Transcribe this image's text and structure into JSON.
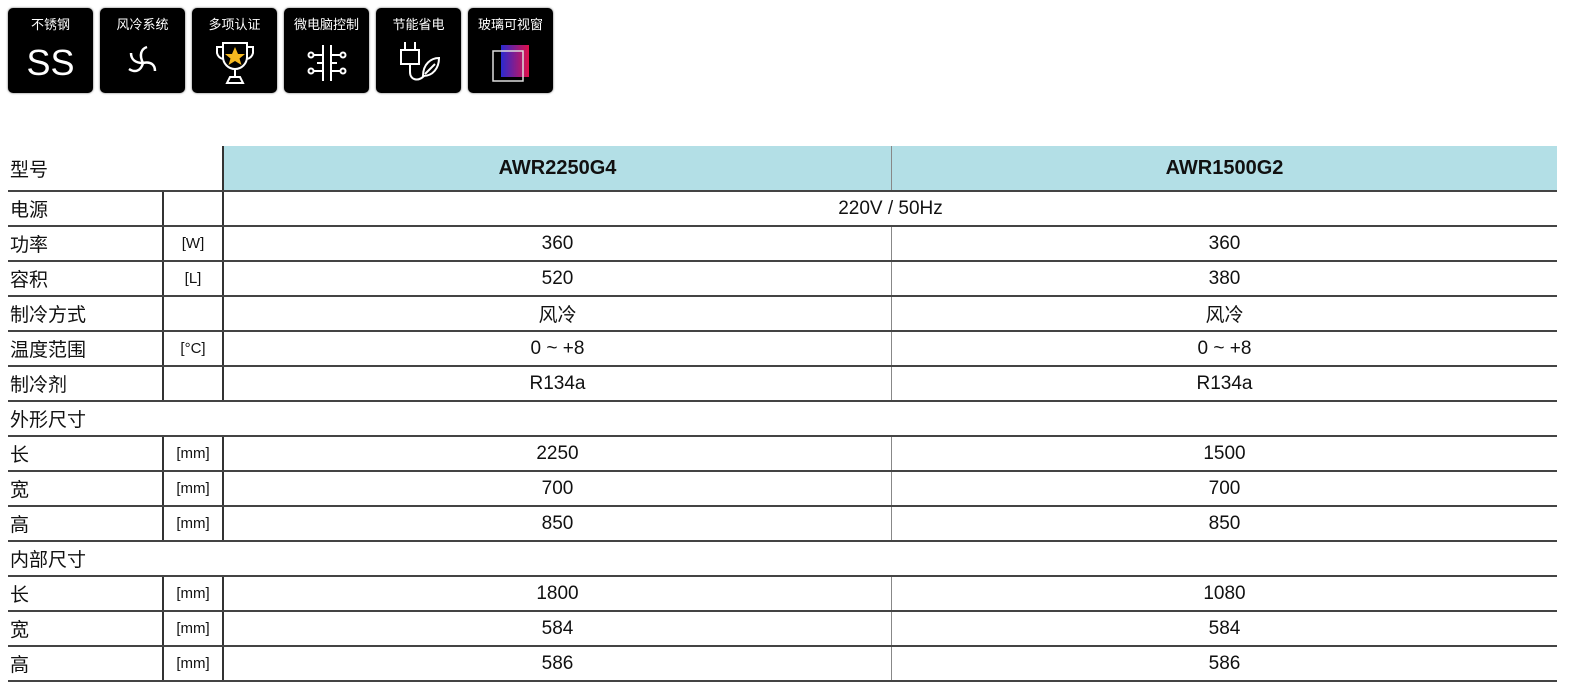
{
  "features": [
    {
      "label": "不锈钢",
      "icon": "ss-text-icon",
      "glyph": "SS"
    },
    {
      "label": "风冷系统",
      "icon": "fan-icon"
    },
    {
      "label": "多项认证",
      "icon": "trophy-star-icon"
    },
    {
      "label": "微电脑控制",
      "icon": "circuit-icon"
    },
    {
      "label": "节能省电",
      "icon": "plug-leaf-icon"
    },
    {
      "label": "玻璃可视窗",
      "icon": "glass-window-icon"
    }
  ],
  "colors": {
    "header_bg": "#b3dfe6",
    "icon_bg": "#000000"
  },
  "table": {
    "header": {
      "label": "型号",
      "models": [
        "AWR2250G4",
        "AWR1500G2"
      ]
    },
    "rows": [
      {
        "label": "电源",
        "unit": "",
        "span": "220V / 50Hz"
      },
      {
        "label": "功率",
        "unit": "[W]",
        "values": [
          "360",
          "360"
        ]
      },
      {
        "label": "容积",
        "unit": "[L]",
        "values": [
          "520",
          "380"
        ]
      },
      {
        "label": "制冷方式",
        "unit": "",
        "values": [
          "风冷",
          "风冷"
        ]
      },
      {
        "label": "温度范围",
        "unit": "[°C]",
        "values": [
          "0 ~ +8",
          "0 ~ +8"
        ]
      },
      {
        "label": "制冷剂",
        "unit": "",
        "values": [
          "R134a",
          "R134a"
        ]
      },
      {
        "section": "外形尺寸"
      },
      {
        "label": "长",
        "unit": "[mm]",
        "values": [
          "2250",
          "1500"
        ]
      },
      {
        "label": "宽",
        "unit": "[mm]",
        "values": [
          "700",
          "700"
        ]
      },
      {
        "label": "高",
        "unit": "[mm]",
        "values": [
          "850",
          "850"
        ]
      },
      {
        "section": "内部尺寸"
      },
      {
        "label": "长",
        "unit": "[mm]",
        "values": [
          "1800",
          "1080"
        ]
      },
      {
        "label": "宽",
        "unit": "[mm]",
        "values": [
          "584",
          "584"
        ]
      },
      {
        "label": "高",
        "unit": "[mm]",
        "values": [
          "586",
          "586"
        ]
      }
    ]
  }
}
